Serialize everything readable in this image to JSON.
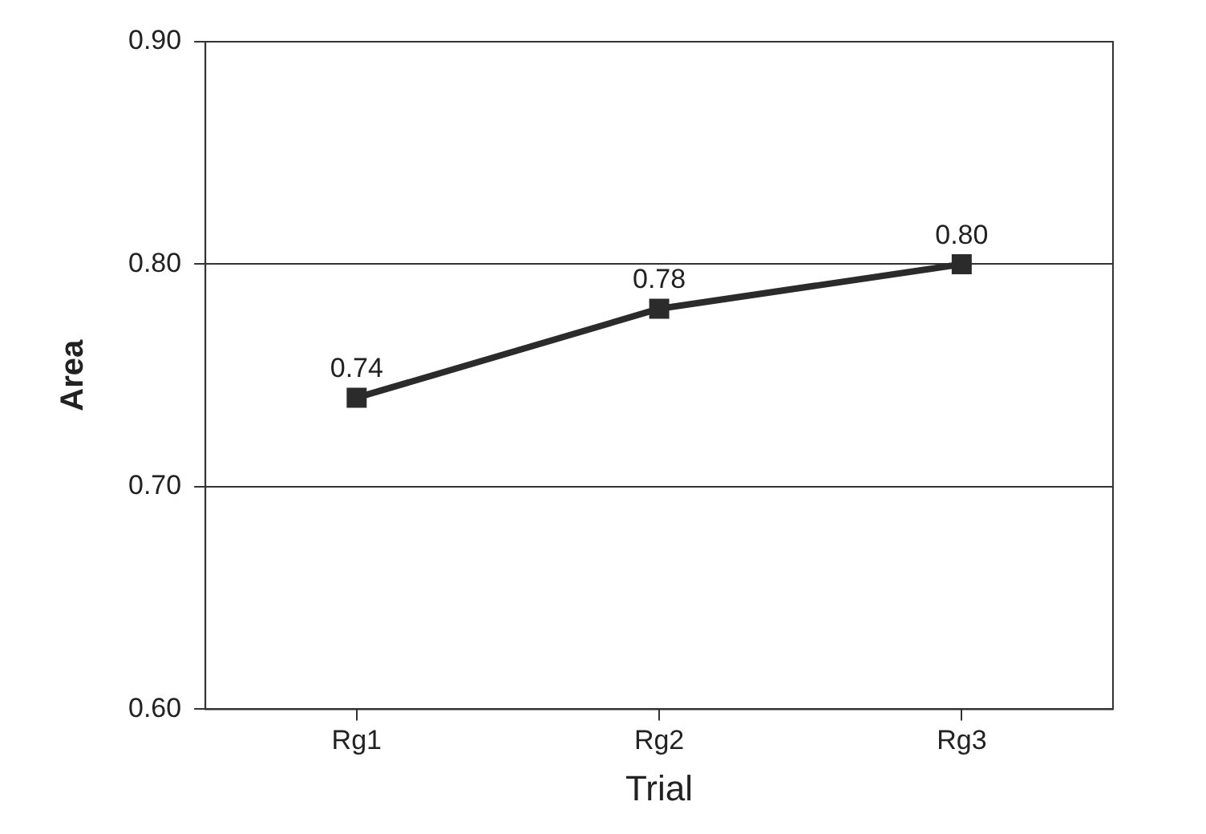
{
  "chart_data": {
    "type": "line",
    "xlabel": "Trial",
    "ylabel": "Area",
    "categories": [
      "Rg1",
      "Rg2",
      "Rg3"
    ],
    "series": [
      {
        "color": "#2b2b2b",
        "values": [
          0.74,
          0.78,
          0.8
        ],
        "value_labels": [
          "0.74",
          "0.78",
          "0.80"
        ]
      }
    ],
    "ylim": [
      0.6,
      0.9
    ],
    "yticks": [
      {
        "value": 0.6,
        "label": "0.60"
      },
      {
        "value": 0.7,
        "label": "0.70"
      },
      {
        "value": 0.8,
        "label": "0.80"
      },
      {
        "value": 0.9,
        "label": "0.90"
      }
    ],
    "grid": "y",
    "legend": false,
    "marker": "square",
    "line_style": "solid"
  }
}
